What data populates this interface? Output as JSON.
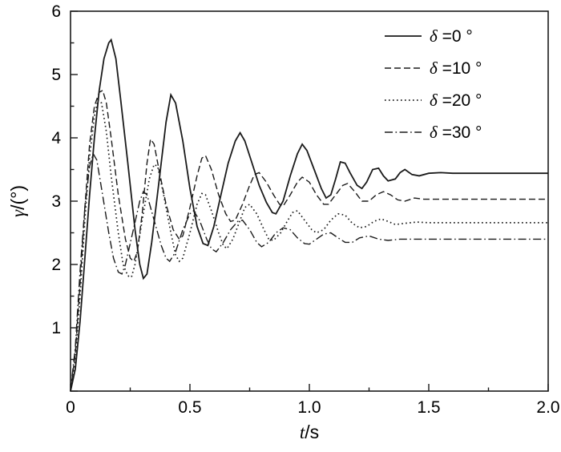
{
  "chart_data": {
    "type": "line",
    "title": "",
    "xlabel": "t/s",
    "ylabel": "γ/(°)",
    "xlim": [
      0,
      2.0
    ],
    "ylim": [
      0,
      6
    ],
    "grid": false,
    "background": "#ffffff",
    "line_color": "#1a1a1a",
    "x_ticks": {
      "major": [
        0,
        0.5,
        1.0,
        1.5,
        2.0
      ],
      "labels": [
        "0",
        "0.5",
        "1.0",
        "1.5",
        "2.0"
      ],
      "minor_step": 0.25
    },
    "y_ticks": {
      "major": [
        0,
        1,
        2,
        3,
        4,
        5,
        6
      ],
      "labels": [
        "",
        "1",
        "2",
        "3",
        "4",
        "5",
        "6"
      ],
      "minor_step": 0.5
    },
    "legend": {
      "position": "top-right",
      "entries": [
        {
          "label": "δ =0 °",
          "style": "solid"
        },
        {
          "label": "δ =10 °",
          "style": "dashed"
        },
        {
          "label": "δ =20 °",
          "style": "dotted"
        },
        {
          "label": "δ =30 °",
          "style": "dashdot"
        }
      ]
    },
    "series": [
      {
        "name": "delta-0",
        "style": "solid",
        "steady_value": 3.44,
        "points": [
          [
            0,
            0
          ],
          [
            0.02,
            0.35
          ],
          [
            0.04,
            1.1
          ],
          [
            0.06,
            2.1
          ],
          [
            0.08,
            3.1
          ],
          [
            0.1,
            4.0
          ],
          [
            0.12,
            4.75
          ],
          [
            0.14,
            5.25
          ],
          [
            0.16,
            5.5
          ],
          [
            0.17,
            5.55
          ],
          [
            0.19,
            5.25
          ],
          [
            0.21,
            4.6
          ],
          [
            0.24,
            3.6
          ],
          [
            0.27,
            2.55
          ],
          [
            0.29,
            2.0
          ],
          [
            0.305,
            1.78
          ],
          [
            0.32,
            1.85
          ],
          [
            0.34,
            2.35
          ],
          [
            0.37,
            3.3
          ],
          [
            0.4,
            4.25
          ],
          [
            0.42,
            4.68
          ],
          [
            0.44,
            4.55
          ],
          [
            0.47,
            3.95
          ],
          [
            0.5,
            3.2
          ],
          [
            0.53,
            2.6
          ],
          [
            0.555,
            2.33
          ],
          [
            0.575,
            2.3
          ],
          [
            0.6,
            2.6
          ],
          [
            0.63,
            3.1
          ],
          [
            0.66,
            3.6
          ],
          [
            0.69,
            3.95
          ],
          [
            0.71,
            4.08
          ],
          [
            0.73,
            3.95
          ],
          [
            0.76,
            3.6
          ],
          [
            0.79,
            3.25
          ],
          [
            0.82,
            2.98
          ],
          [
            0.845,
            2.82
          ],
          [
            0.86,
            2.8
          ],
          [
            0.89,
            3.0
          ],
          [
            0.92,
            3.4
          ],
          [
            0.95,
            3.75
          ],
          [
            0.97,
            3.9
          ],
          [
            0.99,
            3.8
          ],
          [
            1.02,
            3.5
          ],
          [
            1.05,
            3.2
          ],
          [
            1.07,
            3.05
          ],
          [
            1.09,
            3.1
          ],
          [
            1.11,
            3.35
          ],
          [
            1.13,
            3.62
          ],
          [
            1.15,
            3.6
          ],
          [
            1.17,
            3.45
          ],
          [
            1.2,
            3.25
          ],
          [
            1.22,
            3.2
          ],
          [
            1.24,
            3.3
          ],
          [
            1.265,
            3.5
          ],
          [
            1.29,
            3.52
          ],
          [
            1.31,
            3.4
          ],
          [
            1.33,
            3.32
          ],
          [
            1.36,
            3.35
          ],
          [
            1.38,
            3.45
          ],
          [
            1.4,
            3.5
          ],
          [
            1.43,
            3.42
          ],
          [
            1.46,
            3.4
          ],
          [
            1.5,
            3.44
          ],
          [
            1.55,
            3.45
          ],
          [
            1.6,
            3.44
          ],
          [
            1.7,
            3.44
          ],
          [
            1.8,
            3.44
          ],
          [
            1.9,
            3.44
          ],
          [
            2.0,
            3.44
          ]
        ]
      },
      {
        "name": "delta-10",
        "style": "dashed",
        "steady_value": 3.03,
        "points": [
          [
            0,
            0
          ],
          [
            0.02,
            0.6
          ],
          [
            0.04,
            1.7
          ],
          [
            0.06,
            2.9
          ],
          [
            0.08,
            3.9
          ],
          [
            0.1,
            4.5
          ],
          [
            0.12,
            4.72
          ],
          [
            0.135,
            4.75
          ],
          [
            0.15,
            4.55
          ],
          [
            0.17,
            4.0
          ],
          [
            0.2,
            3.1
          ],
          [
            0.23,
            2.4
          ],
          [
            0.25,
            2.1
          ],
          [
            0.265,
            2.05
          ],
          [
            0.28,
            2.2
          ],
          [
            0.3,
            2.8
          ],
          [
            0.32,
            3.6
          ],
          [
            0.335,
            3.98
          ],
          [
            0.35,
            3.9
          ],
          [
            0.37,
            3.5
          ],
          [
            0.4,
            2.95
          ],
          [
            0.43,
            2.55
          ],
          [
            0.455,
            2.4
          ],
          [
            0.47,
            2.45
          ],
          [
            0.5,
            2.9
          ],
          [
            0.53,
            3.4
          ],
          [
            0.55,
            3.68
          ],
          [
            0.565,
            3.72
          ],
          [
            0.59,
            3.5
          ],
          [
            0.62,
            3.1
          ],
          [
            0.65,
            2.8
          ],
          [
            0.67,
            2.68
          ],
          [
            0.69,
            2.7
          ],
          [
            0.72,
            2.95
          ],
          [
            0.75,
            3.25
          ],
          [
            0.77,
            3.42
          ],
          [
            0.79,
            3.45
          ],
          [
            0.82,
            3.3
          ],
          [
            0.85,
            3.1
          ],
          [
            0.875,
            2.95
          ],
          [
            0.89,
            2.92
          ],
          [
            0.92,
            3.1
          ],
          [
            0.95,
            3.3
          ],
          [
            0.97,
            3.38
          ],
          [
            1.0,
            3.3
          ],
          [
            1.03,
            3.1
          ],
          [
            1.06,
            2.95
          ],
          [
            1.08,
            2.95
          ],
          [
            1.11,
            3.1
          ],
          [
            1.14,
            3.25
          ],
          [
            1.16,
            3.28
          ],
          [
            1.19,
            3.15
          ],
          [
            1.22,
            3.0
          ],
          [
            1.25,
            3.0
          ],
          [
            1.28,
            3.1
          ],
          [
            1.31,
            3.15
          ],
          [
            1.34,
            3.1
          ],
          [
            1.37,
            3.02
          ],
          [
            1.4,
            3.0
          ],
          [
            1.44,
            3.05
          ],
          [
            1.48,
            3.03
          ],
          [
            1.55,
            3.03
          ],
          [
            1.65,
            3.03
          ],
          [
            1.8,
            3.03
          ],
          [
            2.0,
            3.03
          ]
        ]
      },
      {
        "name": "delta-20",
        "style": "dotted",
        "steady_value": 2.66,
        "points": [
          [
            0,
            0
          ],
          [
            0.02,
            0.5
          ],
          [
            0.04,
            1.5
          ],
          [
            0.06,
            2.7
          ],
          [
            0.08,
            3.7
          ],
          [
            0.1,
            4.35
          ],
          [
            0.115,
            4.6
          ],
          [
            0.13,
            4.55
          ],
          [
            0.15,
            4.1
          ],
          [
            0.17,
            3.4
          ],
          [
            0.2,
            2.5
          ],
          [
            0.22,
            2.0
          ],
          [
            0.24,
            1.82
          ],
          [
            0.255,
            1.8
          ],
          [
            0.27,
            2.0
          ],
          [
            0.3,
            2.7
          ],
          [
            0.33,
            3.35
          ],
          [
            0.35,
            3.58
          ],
          [
            0.365,
            3.55
          ],
          [
            0.39,
            3.1
          ],
          [
            0.42,
            2.5
          ],
          [
            0.44,
            2.15
          ],
          [
            0.455,
            2.05
          ],
          [
            0.47,
            2.1
          ],
          [
            0.5,
            2.5
          ],
          [
            0.53,
            2.95
          ],
          [
            0.55,
            3.12
          ],
          [
            0.565,
            3.1
          ],
          [
            0.59,
            2.85
          ],
          [
            0.62,
            2.5
          ],
          [
            0.64,
            2.3
          ],
          [
            0.655,
            2.25
          ],
          [
            0.68,
            2.4
          ],
          [
            0.71,
            2.7
          ],
          [
            0.73,
            2.9
          ],
          [
            0.75,
            2.95
          ],
          [
            0.78,
            2.8
          ],
          [
            0.81,
            2.55
          ],
          [
            0.83,
            2.4
          ],
          [
            0.85,
            2.38
          ],
          [
            0.88,
            2.5
          ],
          [
            0.91,
            2.7
          ],
          [
            0.93,
            2.82
          ],
          [
            0.95,
            2.85
          ],
          [
            0.98,
            2.7
          ],
          [
            1.01,
            2.55
          ],
          [
            1.03,
            2.5
          ],
          [
            1.06,
            2.55
          ],
          [
            1.09,
            2.7
          ],
          [
            1.12,
            2.8
          ],
          [
            1.15,
            2.78
          ],
          [
            1.18,
            2.65
          ],
          [
            1.21,
            2.58
          ],
          [
            1.24,
            2.6
          ],
          [
            1.27,
            2.68
          ],
          [
            1.3,
            2.72
          ],
          [
            1.33,
            2.68
          ],
          [
            1.36,
            2.63
          ],
          [
            1.4,
            2.65
          ],
          [
            1.45,
            2.67
          ],
          [
            1.5,
            2.66
          ],
          [
            1.6,
            2.66
          ],
          [
            1.8,
            2.66
          ],
          [
            2.0,
            2.66
          ]
        ]
      },
      {
        "name": "delta-30",
        "style": "dashdot",
        "steady_value": 2.4,
        "points": [
          [
            0,
            0
          ],
          [
            0.02,
            0.7
          ],
          [
            0.04,
            1.9
          ],
          [
            0.06,
            2.9
          ],
          [
            0.08,
            3.55
          ],
          [
            0.095,
            3.75
          ],
          [
            0.11,
            3.65
          ],
          [
            0.13,
            3.2
          ],
          [
            0.16,
            2.5
          ],
          [
            0.18,
            2.1
          ],
          [
            0.2,
            1.88
          ],
          [
            0.215,
            1.85
          ],
          [
            0.23,
            2.0
          ],
          [
            0.26,
            2.5
          ],
          [
            0.29,
            3.0
          ],
          [
            0.305,
            3.15
          ],
          [
            0.32,
            3.1
          ],
          [
            0.35,
            2.7
          ],
          [
            0.38,
            2.3
          ],
          [
            0.4,
            2.1
          ],
          [
            0.415,
            2.05
          ],
          [
            0.44,
            2.2
          ],
          [
            0.47,
            2.55
          ],
          [
            0.5,
            2.8
          ],
          [
            0.515,
            2.85
          ],
          [
            0.54,
            2.7
          ],
          [
            0.57,
            2.4
          ],
          [
            0.59,
            2.25
          ],
          [
            0.61,
            2.2
          ],
          [
            0.64,
            2.35
          ],
          [
            0.67,
            2.55
          ],
          [
            0.7,
            2.68
          ],
          [
            0.72,
            2.7
          ],
          [
            0.75,
            2.55
          ],
          [
            0.78,
            2.35
          ],
          [
            0.8,
            2.28
          ],
          [
            0.83,
            2.35
          ],
          [
            0.86,
            2.5
          ],
          [
            0.89,
            2.58
          ],
          [
            0.92,
            2.55
          ],
          [
            0.95,
            2.42
          ],
          [
            0.98,
            2.33
          ],
          [
            1.0,
            2.32
          ],
          [
            1.03,
            2.4
          ],
          [
            1.06,
            2.48
          ],
          [
            1.09,
            2.5
          ],
          [
            1.12,
            2.42
          ],
          [
            1.15,
            2.35
          ],
          [
            1.18,
            2.35
          ],
          [
            1.21,
            2.42
          ],
          [
            1.25,
            2.45
          ],
          [
            1.29,
            2.4
          ],
          [
            1.33,
            2.38
          ],
          [
            1.38,
            2.4
          ],
          [
            1.45,
            2.4
          ],
          [
            1.55,
            2.4
          ],
          [
            1.7,
            2.4
          ],
          [
            2.0,
            2.4
          ]
        ]
      }
    ]
  }
}
